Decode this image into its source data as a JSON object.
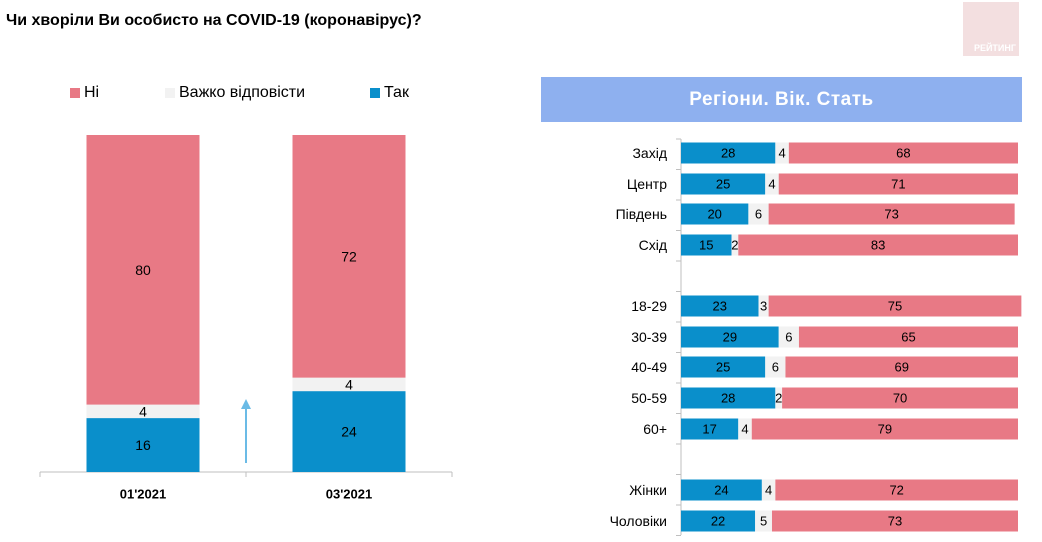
{
  "title": "Чи хворіли Ви особисто на COVID-19 (коронавірус)?",
  "logo_text": "РЕЙТИНГ",
  "legend": [
    {
      "label": "Ні",
      "color": "#e87985"
    },
    {
      "label": "Важко відповісти",
      "color": "#f2f2f2"
    },
    {
      "label": "Так",
      "color": "#0a8fcb"
    }
  ],
  "banner_title": "Регіони. Вік. Стать",
  "chart_data": [
    {
      "type": "bar",
      "stacked": true,
      "categories": [
        "01'2021",
        "03'2021"
      ],
      "series": [
        {
          "name": "Так",
          "values": [
            16,
            24
          ],
          "color": "#0a8fcb"
        },
        {
          "name": "Важко відповісти",
          "values": [
            4,
            4
          ],
          "color": "#f2f2f2"
        },
        {
          "name": "Ні",
          "values": [
            80,
            72
          ],
          "color": "#e87985"
        }
      ],
      "ylim": [
        0,
        100
      ],
      "annotation": "up-arrow"
    },
    {
      "type": "bar",
      "orientation": "horizontal",
      "stacked": true,
      "groups": [
        {
          "categories": [
            "Захід",
            "Центр",
            "Південь",
            "Схід"
          ]
        },
        {
          "categories": [
            "18-29",
            "30-39",
            "40-49",
            "50-59",
            "60+"
          ]
        },
        {
          "categories": [
            "Жінки",
            "Чоловіки"
          ]
        }
      ],
      "series": [
        {
          "name": "Так",
          "values": [
            28,
            25,
            20,
            15,
            23,
            29,
            25,
            28,
            17,
            24,
            22
          ],
          "color": "#0a8fcb"
        },
        {
          "name": "Важко відповісти",
          "values": [
            4,
            4,
            6,
            2,
            3,
            6,
            6,
            2,
            4,
            4,
            5
          ],
          "color": "#f2f2f2"
        },
        {
          "name": "Ні",
          "values": [
            68,
            71,
            73,
            83,
            75,
            65,
            69,
            70,
            79,
            72,
            73
          ],
          "color": "#e87985"
        }
      ],
      "xlim": [
        0,
        100
      ]
    }
  ]
}
